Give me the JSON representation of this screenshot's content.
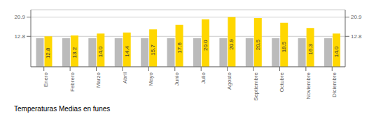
{
  "chart_data": {
    "type": "bar",
    "title": "Temperaturas Medias en funes",
    "categories": [
      "Enero",
      "Febrero",
      "Marzo",
      "Abril",
      "Mayo",
      "Junio",
      "Julio",
      "Agosto",
      "Septiembre",
      "Octubre",
      "Noviembre",
      "Diciembre"
    ],
    "series": [
      {
        "color": "#BBBBBB",
        "values": [
          12.0,
          12.0,
          12.0,
          12.0,
          12.0,
          12.0,
          12.0,
          12.0,
          12.0,
          12.0,
          12.0,
          12.0
        ]
      },
      {
        "color": "#FFD700",
        "values": [
          12.8,
          13.2,
          14.0,
          14.4,
          15.7,
          17.6,
          20.0,
          20.9,
          20.5,
          18.5,
          16.3,
          14.0
        ],
        "data_labels": true,
        "value_labels": [
          "12.8",
          "13.2",
          "14.0",
          "14.4",
          "15.7",
          "17.6",
          "20.0",
          "20.9",
          "20.5",
          "18.5",
          "16.3",
          "14.0"
        ]
      }
    ],
    "ylim": [
      0.0,
      24.0
    ],
    "yticks": [
      12.8,
      20.9
    ],
    "y2lim": [
      0.0,
      24.0
    ],
    "y2ticks": [
      12.8,
      20.9
    ],
    "grid": true
  }
}
